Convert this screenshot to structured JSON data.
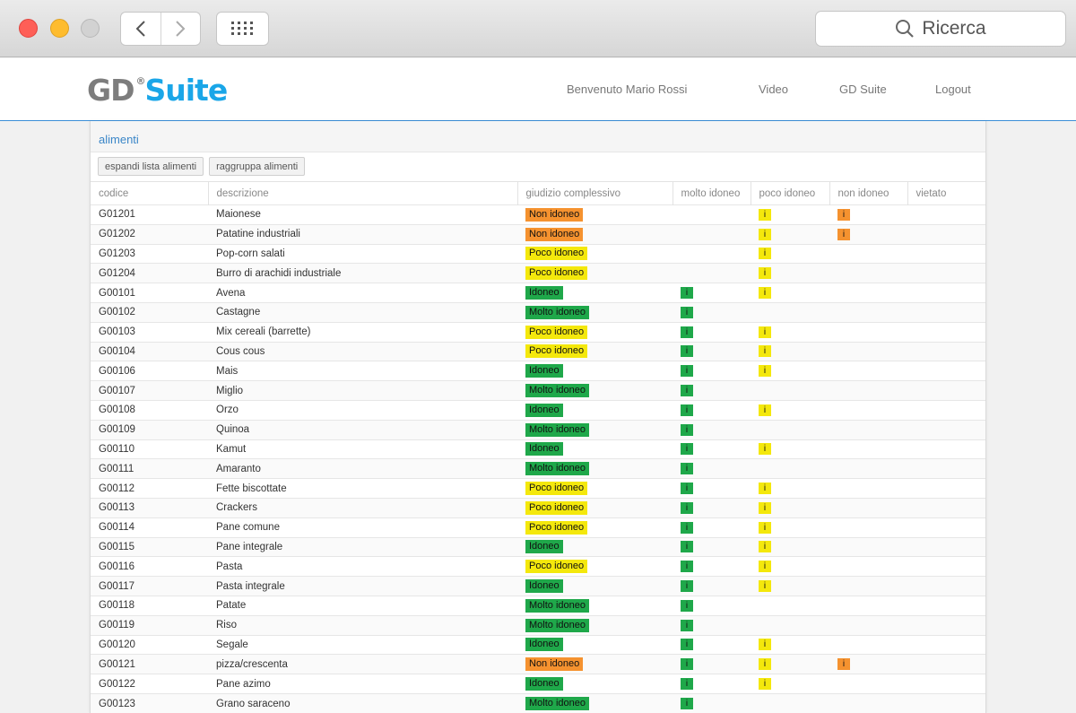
{
  "browser": {
    "search_placeholder": "Ricerca"
  },
  "header": {
    "logo_gd": "GD",
    "logo_reg": "®",
    "logo_suite": "Suite",
    "nav": [
      {
        "label": "Benvenuto Mario Rossi"
      },
      {
        "label": "Video"
      },
      {
        "label": "GD Suite"
      },
      {
        "label": "Logout"
      }
    ]
  },
  "panel": {
    "title": "alimenti",
    "buttons": [
      "espandi lista alimenti",
      "raggruppa alimenti"
    ]
  },
  "colors": {
    "non_idoneo": "#f5922f",
    "poco_idoneo": "#f4e80c",
    "idoneo": "#1fa84a",
    "molto_idoneo": "#1fa84a"
  },
  "table": {
    "columns": [
      "codice",
      "descrizione",
      "giudizio complessivo",
      "molto idoneo",
      "poco idoneo",
      "non idoneo",
      "vietato"
    ],
    "marker": "i",
    "rows": [
      {
        "codice": "G01201",
        "descrizione": "Maionese",
        "giudizio": "Non idoneo",
        "molto": false,
        "poco": true,
        "non": true,
        "vietato": false
      },
      {
        "codice": "G01202",
        "descrizione": "Patatine industriali",
        "giudizio": "Non idoneo",
        "molto": false,
        "poco": true,
        "non": true,
        "vietato": false
      },
      {
        "codice": "G01203",
        "descrizione": "Pop-corn salati",
        "giudizio": "Poco idoneo",
        "molto": false,
        "poco": true,
        "non": false,
        "vietato": false
      },
      {
        "codice": "G01204",
        "descrizione": "Burro di arachidi industriale",
        "giudizio": "Poco idoneo",
        "molto": false,
        "poco": true,
        "non": false,
        "vietato": false
      },
      {
        "codice": "G00101",
        "descrizione": "Avena",
        "giudizio": "Idoneo",
        "molto": true,
        "poco": true,
        "non": false,
        "vietato": false
      },
      {
        "codice": "G00102",
        "descrizione": "Castagne",
        "giudizio": "Molto idoneo",
        "molto": true,
        "poco": false,
        "non": false,
        "vietato": false
      },
      {
        "codice": "G00103",
        "descrizione": "Mix cereali (barrette)",
        "giudizio": "Poco idoneo",
        "molto": true,
        "poco": true,
        "non": false,
        "vietato": false
      },
      {
        "codice": "G00104",
        "descrizione": "Cous cous",
        "giudizio": "Poco idoneo",
        "molto": true,
        "poco": true,
        "non": false,
        "vietato": false
      },
      {
        "codice": "G00106",
        "descrizione": "Mais",
        "giudizio": "Idoneo",
        "molto": true,
        "poco": true,
        "non": false,
        "vietato": false
      },
      {
        "codice": "G00107",
        "descrizione": "Miglio",
        "giudizio": "Molto idoneo",
        "molto": true,
        "poco": false,
        "non": false,
        "vietato": false
      },
      {
        "codice": "G00108",
        "descrizione": "Orzo",
        "giudizio": "Idoneo",
        "molto": true,
        "poco": true,
        "non": false,
        "vietato": false
      },
      {
        "codice": "G00109",
        "descrizione": "Quinoa",
        "giudizio": "Molto idoneo",
        "molto": true,
        "poco": false,
        "non": false,
        "vietato": false
      },
      {
        "codice": "G00110",
        "descrizione": "Kamut",
        "giudizio": "Idoneo",
        "molto": true,
        "poco": true,
        "non": false,
        "vietato": false
      },
      {
        "codice": "G00111",
        "descrizione": "Amaranto",
        "giudizio": "Molto idoneo",
        "molto": true,
        "poco": false,
        "non": false,
        "vietato": false
      },
      {
        "codice": "G00112",
        "descrizione": "Fette biscottate",
        "giudizio": "Poco idoneo",
        "molto": true,
        "poco": true,
        "non": false,
        "vietato": false
      },
      {
        "codice": "G00113",
        "descrizione": "Crackers",
        "giudizio": "Poco idoneo",
        "molto": true,
        "poco": true,
        "non": false,
        "vietato": false
      },
      {
        "codice": "G00114",
        "descrizione": "Pane comune",
        "giudizio": "Poco idoneo",
        "molto": true,
        "poco": true,
        "non": false,
        "vietato": false
      },
      {
        "codice": "G00115",
        "descrizione": "Pane integrale",
        "giudizio": "Idoneo",
        "molto": true,
        "poco": true,
        "non": false,
        "vietato": false
      },
      {
        "codice": "G00116",
        "descrizione": "Pasta",
        "giudizio": "Poco idoneo",
        "molto": true,
        "poco": true,
        "non": false,
        "vietato": false
      },
      {
        "codice": "G00117",
        "descrizione": "Pasta integrale",
        "giudizio": "Idoneo",
        "molto": true,
        "poco": true,
        "non": false,
        "vietato": false
      },
      {
        "codice": "G00118",
        "descrizione": "Patate",
        "giudizio": "Molto idoneo",
        "molto": true,
        "poco": false,
        "non": false,
        "vietato": false
      },
      {
        "codice": "G00119",
        "descrizione": "Riso",
        "giudizio": "Molto idoneo",
        "molto": true,
        "poco": false,
        "non": false,
        "vietato": false
      },
      {
        "codice": "G00120",
        "descrizione": "Segale",
        "giudizio": "Idoneo",
        "molto": true,
        "poco": true,
        "non": false,
        "vietato": false
      },
      {
        "codice": "G00121",
        "descrizione": "pizza/crescenta",
        "giudizio": "Non idoneo",
        "molto": true,
        "poco": true,
        "non": true,
        "vietato": false
      },
      {
        "codice": "G00122",
        "descrizione": "Pane azimo",
        "giudizio": "Idoneo",
        "molto": true,
        "poco": true,
        "non": false,
        "vietato": false
      },
      {
        "codice": "G00123",
        "descrizione": "Grano saraceno",
        "giudizio": "Molto idoneo",
        "molto": true,
        "poco": false,
        "non": false,
        "vietato": false
      }
    ]
  }
}
